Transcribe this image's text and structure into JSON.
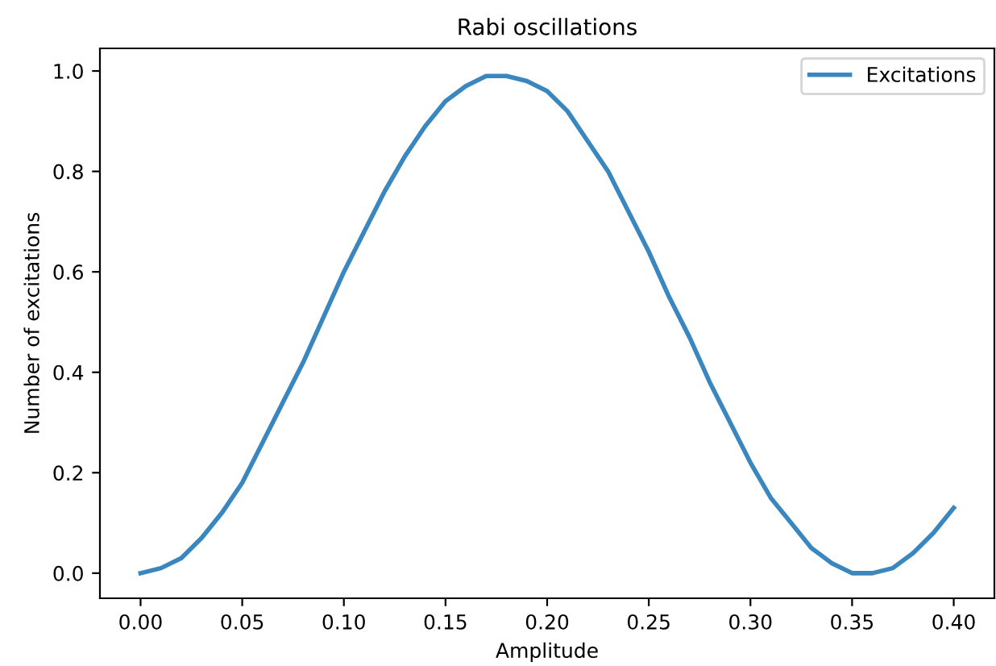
{
  "chart_data": {
    "type": "line",
    "title": "Rabi oscillations",
    "xlabel": "Amplitude",
    "ylabel": "Number of excitations",
    "x": [
      0.0,
      0.01,
      0.02,
      0.03,
      0.04,
      0.05,
      0.06,
      0.07,
      0.08,
      0.09,
      0.1,
      0.11,
      0.12,
      0.13,
      0.14,
      0.15,
      0.16,
      0.17,
      0.18,
      0.19,
      0.2,
      0.21,
      0.22,
      0.23,
      0.24,
      0.25,
      0.26,
      0.27,
      0.28,
      0.29,
      0.3,
      0.31,
      0.32,
      0.33,
      0.34,
      0.35,
      0.36,
      0.37,
      0.38,
      0.39,
      0.4
    ],
    "series": [
      {
        "name": "Excitations",
        "color": "#3a87c0",
        "values": [
          0.0,
          0.01,
          0.03,
          0.07,
          0.12,
          0.18,
          0.26,
          0.34,
          0.42,
          0.51,
          0.6,
          0.68,
          0.76,
          0.83,
          0.89,
          0.94,
          0.97,
          0.99,
          0.99,
          0.98,
          0.96,
          0.92,
          0.86,
          0.8,
          0.72,
          0.64,
          0.55,
          0.47,
          0.38,
          0.3,
          0.22,
          0.15,
          0.1,
          0.05,
          0.02,
          0.0,
          0.0,
          0.01,
          0.04,
          0.08,
          0.13
        ]
      }
    ],
    "xlim": [
      -0.02,
      0.42
    ],
    "ylim": [
      -0.05,
      1.045
    ],
    "xticks": [
      {
        "value": 0.0,
        "label": "0.00"
      },
      {
        "value": 0.05,
        "label": "0.05"
      },
      {
        "value": 0.1,
        "label": "0.10"
      },
      {
        "value": 0.15,
        "label": "0.15"
      },
      {
        "value": 0.2,
        "label": "0.20"
      },
      {
        "value": 0.25,
        "label": "0.25"
      },
      {
        "value": 0.3,
        "label": "0.30"
      },
      {
        "value": 0.35,
        "label": "0.35"
      },
      {
        "value": 0.4,
        "label": "0.40"
      }
    ],
    "yticks": [
      {
        "value": 0.0,
        "label": "0.0"
      },
      {
        "value": 0.2,
        "label": "0.2"
      },
      {
        "value": 0.4,
        "label": "0.4"
      },
      {
        "value": 0.6,
        "label": "0.6"
      },
      {
        "value": 0.8,
        "label": "0.8"
      },
      {
        "value": 1.0,
        "label": "1.0"
      }
    ],
    "grid": false,
    "legend": "top right",
    "line_style": "solid",
    "marker": "none"
  }
}
